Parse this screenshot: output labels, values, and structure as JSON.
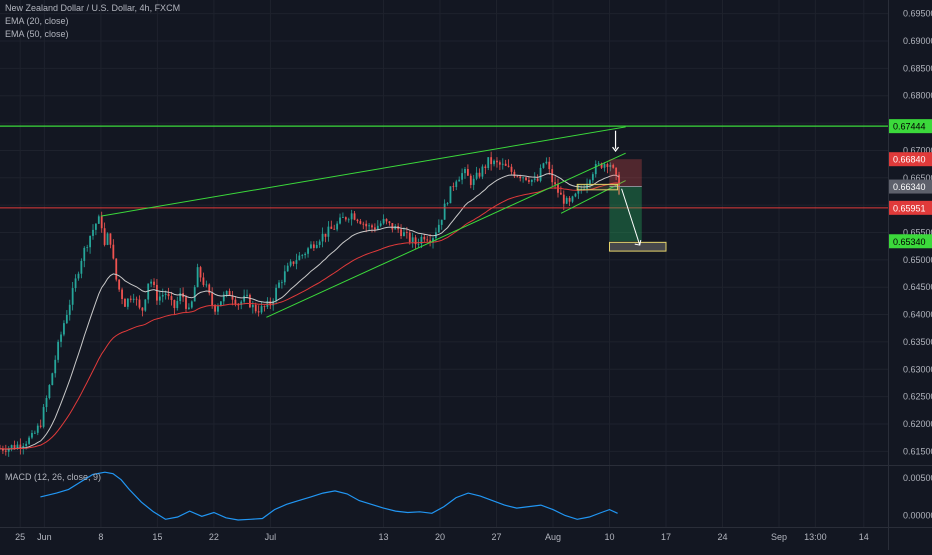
{
  "legend": {
    "title": "New Zealand Dollar / U.S. Dollar, 4h, FXCM",
    "ema20": "EMA (20, close)",
    "ema50": "EMA (50, close)",
    "macd": "MACD (12, 26, close, 9)"
  },
  "colors": {
    "background": "#131722",
    "grid": "#1e222d",
    "bull": "#26a69a",
    "bear": "#ef5350",
    "ema20": "#c9c9c9",
    "ema50": "#e03a3a",
    "trendline": "#3bd93b",
    "support": "#e03a3a",
    "macd": "#2196f3",
    "axis_text": "#b2b5be"
  },
  "chart_data": {
    "type": "candlestick",
    "symbol": "NZDUSD",
    "timeframe": "4h",
    "ylim": [
      0.6125,
      0.6975
    ],
    "x_ticks": [
      {
        "label": "25",
        "t": 5
      },
      {
        "label": "Jun",
        "t": 11
      },
      {
        "label": "8",
        "t": 25
      },
      {
        "label": "15",
        "t": 39
      },
      {
        "label": "22",
        "t": 53
      },
      {
        "label": "Jul",
        "t": 67
      },
      {
        "label": "13",
        "t": 95
      },
      {
        "label": "20",
        "t": 109
      },
      {
        "label": "27",
        "t": 123
      },
      {
        "label": "Aug",
        "t": 137
      },
      {
        "label": "10",
        "t": 151
      },
      {
        "label": "17",
        "t": 165
      },
      {
        "label": "24",
        "t": 179
      },
      {
        "label": "Sep",
        "t": 193
      },
      {
        "label": "13:00",
        "t": 202
      },
      {
        "label": "14",
        "t": 214
      }
    ],
    "y_ticks": [
      "0.69500",
      "0.69000",
      "0.68500",
      "0.68000",
      "0.67500",
      "0.67000",
      "0.66500",
      "0.66000",
      "0.65500",
      "0.65000",
      "0.64500",
      "0.64000",
      "0.63500",
      "0.63000",
      "0.62500",
      "0.62000",
      "0.61500"
    ],
    "price_labels": [
      {
        "text": "0.67444",
        "value": 0.67444,
        "color": "#3bd93b"
      },
      {
        "text": "0.66840",
        "value": 0.6684,
        "color": "#e03a3a"
      },
      {
        "text": "0.66340",
        "value": 0.6634,
        "color": "#5d606b"
      },
      {
        "text": "0.65951",
        "value": 0.65951,
        "color": "#e03a3a"
      },
      {
        "text": "0.65340",
        "value": 0.6534,
        "color": "#3bd93b"
      }
    ],
    "price_path": [
      [
        0,
        0.6155
      ],
      [
        4,
        0.616
      ],
      [
        8,
        0.6175
      ],
      [
        10,
        0.62
      ],
      [
        12,
        0.626
      ],
      [
        14,
        0.633
      ],
      [
        16,
        0.639
      ],
      [
        18,
        0.644
      ],
      [
        20,
        0.65
      ],
      [
        22,
        0.654
      ],
      [
        24,
        0.657
      ],
      [
        25,
        0.6575
      ],
      [
        26,
        0.652
      ],
      [
        27,
        0.6555
      ],
      [
        28,
        0.65
      ],
      [
        29,
        0.6455
      ],
      [
        31,
        0.642
      ],
      [
        33,
        0.644
      ],
      [
        35,
        0.64
      ],
      [
        37,
        0.647
      ],
      [
        39,
        0.643
      ],
      [
        41,
        0.644
      ],
      [
        43,
        0.641
      ],
      [
        45,
        0.644
      ],
      [
        47,
        0.64
      ],
      [
        49,
        0.648
      ],
      [
        51,
        0.645
      ],
      [
        53,
        0.641
      ],
      [
        55,
        0.643
      ],
      [
        57,
        0.644
      ],
      [
        59,
        0.642
      ],
      [
        61,
        0.643
      ],
      [
        63,
        0.641
      ],
      [
        65,
        0.641
      ],
      [
        67,
        0.642
      ],
      [
        69,
        0.6455
      ],
      [
        71,
        0.648
      ],
      [
        73,
        0.65
      ],
      [
        75,
        0.651
      ],
      [
        77,
        0.6525
      ],
      [
        79,
        0.654
      ],
      [
        81,
        0.655
      ],
      [
        83,
        0.656
      ],
      [
        85,
        0.6575
      ],
      [
        87,
        0.6585
      ],
      [
        89,
        0.6575
      ],
      [
        91,
        0.656
      ],
      [
        93,
        0.656
      ],
      [
        95,
        0.657
      ],
      [
        97,
        0.656
      ],
      [
        99,
        0.6555
      ],
      [
        101,
        0.654
      ],
      [
        103,
        0.653
      ],
      [
        105,
        0.6545
      ],
      [
        107,
        0.654
      ],
      [
        109,
        0.657
      ],
      [
        111,
        0.6615
      ],
      [
        113,
        0.665
      ],
      [
        115,
        0.666
      ],
      [
        117,
        0.664
      ],
      [
        119,
        0.666
      ],
      [
        121,
        0.668
      ],
      [
        123,
        0.6675
      ],
      [
        125,
        0.667
      ],
      [
        127,
        0.666
      ],
      [
        129,
        0.6655
      ],
      [
        131,
        0.665
      ],
      [
        133,
        0.664
      ],
      [
        135,
        0.6685
      ],
      [
        137,
        0.664
      ],
      [
        139,
        0.6615
      ],
      [
        141,
        0.66
      ],
      [
        143,
        0.662
      ],
      [
        145,
        0.664
      ],
      [
        147,
        0.6665
      ],
      [
        149,
        0.6675
      ],
      [
        151,
        0.668
      ],
      [
        152,
        0.666
      ],
      [
        153,
        0.664
      ],
      [
        154,
        0.6605
      ]
    ],
    "ema_periods": [
      20,
      50
    ],
    "macd_range": [
      -0.001,
      0.0061
    ],
    "macd_ticks": [
      "0.00500",
      "0.00000"
    ],
    "macd_path": [
      [
        10,
        0.0025
      ],
      [
        14,
        0.003
      ],
      [
        17,
        0.0035
      ],
      [
        20,
        0.0045
      ],
      [
        23,
        0.0055
      ],
      [
        26,
        0.0058
      ],
      [
        28,
        0.0056
      ],
      [
        30,
        0.0048
      ],
      [
        32,
        0.0035
      ],
      [
        35,
        0.0018
      ],
      [
        38,
        0.0005
      ],
      [
        41,
        -0.0005
      ],
      [
        44,
        -0.0002
      ],
      [
        47,
        0.0006
      ],
      [
        50,
        -0.0001
      ],
      [
        53,
        0.0004
      ],
      [
        56,
        -0.0003
      ],
      [
        59,
        -0.0006
      ],
      [
        62,
        -0.0005
      ],
      [
        65,
        -0.0004
      ],
      [
        68,
        0.0008
      ],
      [
        71,
        0.0015
      ],
      [
        74,
        0.002
      ],
      [
        77,
        0.0025
      ],
      [
        80,
        0.003
      ],
      [
        83,
        0.0033
      ],
      [
        86,
        0.0029
      ],
      [
        89,
        0.002
      ],
      [
        92,
        0.0015
      ],
      [
        95,
        0.001
      ],
      [
        98,
        0.0006
      ],
      [
        101,
        0.0004
      ],
      [
        104,
        0.0005
      ],
      [
        107,
        0.0003
      ],
      [
        110,
        0.0012
      ],
      [
        113,
        0.0024
      ],
      [
        116,
        0.003
      ],
      [
        119,
        0.0026
      ],
      [
        122,
        0.002
      ],
      [
        125,
        0.0014
      ],
      [
        128,
        0.001
      ],
      [
        131,
        0.0012
      ],
      [
        134,
        0.0014
      ],
      [
        137,
        0.0008
      ],
      [
        140,
        0.0
      ],
      [
        143,
        -0.0005
      ],
      [
        146,
        -0.0002
      ],
      [
        149,
        0.0004
      ],
      [
        151,
        0.0008
      ],
      [
        153,
        0.0003
      ]
    ],
    "lines": {
      "resistance_h": 0.67444,
      "support_h": 0.65951,
      "upper_wedge": [
        [
          25,
          0.658
        ],
        [
          155,
          0.6743
        ]
      ],
      "lower_wedge": [
        [
          66,
          0.6395
        ],
        [
          155,
          0.6695
        ]
      ],
      "channel_lower": [
        [
          139,
          0.6585
        ],
        [
          155,
          0.6645
        ]
      ]
    },
    "trade_box": {
      "t0": 151,
      "t1": 159,
      "entry": 0.6634,
      "stop": 0.6684,
      "target": 0.6534
    },
    "target_box": {
      "t0": 151,
      "t1": 165,
      "low": 0.6516,
      "high": 0.6532
    },
    "entry_box": {
      "t0": 143,
      "t1": 153,
      "low": 0.6628,
      "high": 0.6638
    }
  }
}
